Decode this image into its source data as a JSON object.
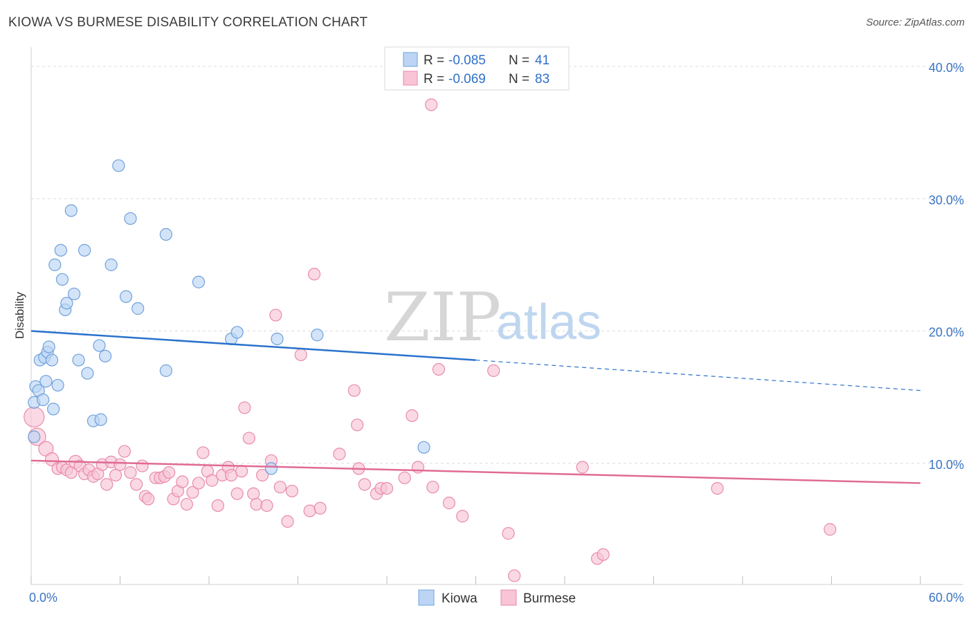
{
  "header": {
    "title": "KIOWA VS BURMESE DISABILITY CORRELATION CHART",
    "source": "Source: ZipAtlas.com"
  },
  "watermark": {
    "zip": "ZIP",
    "atlas": "atlas"
  },
  "legend": {
    "kiowa": {
      "r_label": "R = ",
      "r_value": "-0.085",
      "n_label": "N = ",
      "n_value": "41"
    },
    "burmese": {
      "r_label": "R = ",
      "r_value": "-0.069",
      "n_label": "N = ",
      "n_value": "83"
    }
  },
  "bottom_legend": {
    "kiowa": "Kiowa",
    "burmese": "Burmese"
  },
  "chart_data": {
    "type": "scatter",
    "ylabel": "Disability",
    "xlim": [
      0,
      60
    ],
    "ylim": [
      0,
      40
    ],
    "x_tick_labels": [
      {
        "v": 0,
        "label": "0.0%"
      },
      {
        "v": 60,
        "label": "60.0%"
      }
    ],
    "y_tick_labels": [
      {
        "v": 10,
        "label": "10.0%"
      },
      {
        "v": 20,
        "label": "20.0%"
      },
      {
        "v": 30,
        "label": "30.0%"
      },
      {
        "v": 40,
        "label": "40.0%"
      }
    ],
    "colors": {
      "kiowa_fill": "#bcd5f5",
      "kiowa_stroke": "#6fa0dc",
      "kiowa_line": "#2a72cc",
      "burmese_fill": "#f8c4d6",
      "burmese_stroke": "#e98aab",
      "burmese_line": "#e06a95",
      "tick_text": "#3a74c4"
    },
    "series": [
      {
        "name": "Kiowa",
        "trend": {
          "x0": 0,
          "y0": 20.0,
          "x_solid_end": 30,
          "y_solid_end": 17.8,
          "x1": 60,
          "y1": 15.5
        },
        "points": [
          [
            0.2,
            12.0,
            7
          ],
          [
            0.2,
            14.6,
            7
          ],
          [
            0.3,
            15.8,
            7
          ],
          [
            0.5,
            15.5,
            7
          ],
          [
            0.6,
            17.8,
            7
          ],
          [
            0.8,
            14.8,
            7
          ],
          [
            0.9,
            18.0,
            7
          ],
          [
            1.0,
            16.2,
            7
          ],
          [
            1.1,
            18.4,
            7
          ],
          [
            1.2,
            18.8,
            7
          ],
          [
            1.4,
            17.8,
            7
          ],
          [
            1.5,
            14.1,
            7
          ],
          [
            1.6,
            25.0,
            7
          ],
          [
            1.8,
            15.9,
            7
          ],
          [
            2.0,
            26.1,
            7
          ],
          [
            2.1,
            23.9,
            7
          ],
          [
            2.3,
            21.6,
            7
          ],
          [
            2.4,
            22.1,
            7
          ],
          [
            2.7,
            29.1,
            7
          ],
          [
            2.9,
            22.8,
            7
          ],
          [
            3.2,
            17.8,
            7
          ],
          [
            3.6,
            26.1,
            7
          ],
          [
            3.8,
            16.8,
            7
          ],
          [
            4.2,
            13.2,
            7
          ],
          [
            4.6,
            18.9,
            7
          ],
          [
            4.7,
            13.3,
            7
          ],
          [
            5.0,
            18.1,
            7
          ],
          [
            5.4,
            25.0,
            7
          ],
          [
            5.9,
            32.5,
            7
          ],
          [
            6.4,
            22.6,
            7
          ],
          [
            6.7,
            28.5,
            7
          ],
          [
            7.2,
            21.7,
            7
          ],
          [
            9.1,
            27.3,
            7
          ],
          [
            9.1,
            17.0,
            7
          ],
          [
            11.3,
            23.7,
            7
          ],
          [
            13.5,
            19.4,
            7
          ],
          [
            13.9,
            19.9,
            7
          ],
          [
            16.2,
            9.6,
            7
          ],
          [
            16.6,
            19.4,
            7
          ],
          [
            19.3,
            19.7,
            7
          ],
          [
            26.5,
            11.2,
            7
          ]
        ]
      },
      {
        "name": "Burmese",
        "trend": {
          "x0": 0,
          "y0": 10.2,
          "x1": 60,
          "y1": 8.5
        },
        "points": [
          [
            0.2,
            13.5,
            13
          ],
          [
            0.4,
            12.0,
            11
          ],
          [
            1.0,
            11.1,
            9
          ],
          [
            1.4,
            10.3,
            8
          ],
          [
            1.8,
            9.6,
            7
          ],
          [
            2.1,
            9.7,
            7
          ],
          [
            2.4,
            9.5,
            7
          ],
          [
            2.7,
            9.3,
            7
          ],
          [
            3.0,
            10.1,
            8
          ],
          [
            3.3,
            9.8,
            7
          ],
          [
            3.6,
            9.2,
            7
          ],
          [
            3.9,
            9.5,
            7
          ],
          [
            4.2,
            9.0,
            7
          ],
          [
            4.5,
            9.2,
            7
          ],
          [
            4.8,
            9.9,
            7
          ],
          [
            5.1,
            8.4,
            7
          ],
          [
            5.4,
            10.1,
            7
          ],
          [
            5.7,
            9.1,
            7
          ],
          [
            6.0,
            9.9,
            7
          ],
          [
            6.3,
            10.9,
            7
          ],
          [
            6.7,
            9.3,
            7
          ],
          [
            7.1,
            8.4,
            7
          ],
          [
            7.5,
            9.8,
            7
          ],
          [
            7.7,
            7.5,
            7
          ],
          [
            7.9,
            7.3,
            7
          ],
          [
            8.4,
            8.9,
            7
          ],
          [
            8.7,
            8.9,
            7
          ],
          [
            9.0,
            9.0,
            7
          ],
          [
            9.3,
            9.3,
            7
          ],
          [
            9.6,
            7.3,
            7
          ],
          [
            9.9,
            7.9,
            7
          ],
          [
            10.2,
            8.6,
            7
          ],
          [
            10.5,
            6.9,
            7
          ],
          [
            10.9,
            7.8,
            7
          ],
          [
            11.3,
            8.5,
            7
          ],
          [
            11.6,
            10.8,
            7
          ],
          [
            11.9,
            9.4,
            7
          ],
          [
            12.2,
            8.7,
            7
          ],
          [
            12.6,
            6.8,
            7
          ],
          [
            12.9,
            9.1,
            7
          ],
          [
            13.3,
            9.7,
            7
          ],
          [
            13.5,
            9.1,
            7
          ],
          [
            13.9,
            7.7,
            7
          ],
          [
            14.2,
            9.4,
            7
          ],
          [
            14.4,
            14.2,
            7
          ],
          [
            14.7,
            11.9,
            7
          ],
          [
            15.0,
            7.7,
            7
          ],
          [
            15.2,
            6.9,
            7
          ],
          [
            15.6,
            9.1,
            7
          ],
          [
            15.9,
            6.8,
            7
          ],
          [
            16.2,
            10.2,
            7
          ],
          [
            16.5,
            21.2,
            7
          ],
          [
            16.8,
            8.2,
            7
          ],
          [
            17.3,
            5.6,
            7
          ],
          [
            17.6,
            7.9,
            7
          ],
          [
            18.2,
            18.2,
            7
          ],
          [
            18.8,
            6.4,
            7
          ],
          [
            19.1,
            24.3,
            7
          ],
          [
            19.5,
            6.6,
            7
          ],
          [
            20.8,
            10.7,
            7
          ],
          [
            21.8,
            15.5,
            7
          ],
          [
            22.0,
            12.9,
            7
          ],
          [
            22.5,
            8.4,
            7
          ],
          [
            23.3,
            7.7,
            7
          ],
          [
            23.6,
            8.1,
            7
          ],
          [
            24.0,
            8.1,
            7
          ],
          [
            25.2,
            8.9,
            7
          ],
          [
            25.7,
            13.6,
            7
          ],
          [
            26.1,
            9.7,
            7
          ],
          [
            27.0,
            37.1,
            7
          ],
          [
            27.5,
            17.1,
            7
          ],
          [
            28.2,
            7.0,
            7
          ],
          [
            29.1,
            6.0,
            7
          ],
          [
            31.2,
            17.0,
            7
          ],
          [
            32.2,
            4.7,
            7
          ],
          [
            32.6,
            1.5,
            7
          ],
          [
            37.2,
            9.7,
            7
          ],
          [
            38.2,
            2.8,
            7
          ],
          [
            38.6,
            3.1,
            7
          ],
          [
            46.3,
            8.1,
            7
          ],
          [
            53.9,
            5.0,
            7
          ],
          [
            22.1,
            9.6,
            7
          ],
          [
            27.1,
            8.2,
            7
          ]
        ]
      }
    ]
  }
}
